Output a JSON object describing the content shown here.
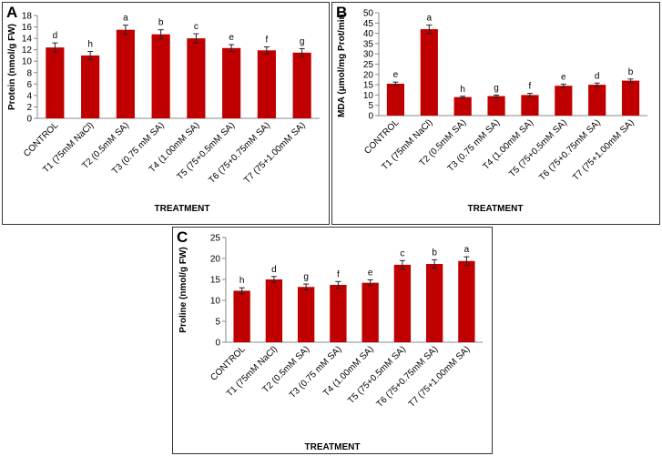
{
  "style": {
    "bar_color": "#c00000",
    "error_color": "#222222",
    "axis_color": "#888888"
  },
  "chart_data": [
    {
      "id": "A",
      "type": "bar",
      "panel_label": "A",
      "xlabel": "TREATMENT",
      "ylabel": "Protein (nmol/g FW)",
      "ylim": [
        0,
        18
      ],
      "yticks": [
        0,
        2,
        4,
        6,
        8,
        10,
        12,
        14,
        16,
        18
      ],
      "categories": [
        "CONTROL",
        "T1 (75mM NaCl)",
        "T2 (0.5mM SA)",
        "T3 (0.75 mM SA)",
        "T4 (1.00mM SA)",
        "T5 (75+0.5mM SA)",
        "T6 (75+0.75mM SA)",
        "T7 (75+1.00mM SA)"
      ],
      "values": [
        12.4,
        11.0,
        15.5,
        14.7,
        14.0,
        12.3,
        11.9,
        11.5
      ],
      "errors": [
        0.8,
        0.7,
        0.8,
        0.8,
        0.8,
        0.6,
        0.6,
        0.7
      ],
      "letters": [
        "d",
        "h",
        "a",
        "b",
        "c",
        "e",
        "f",
        "g"
      ]
    },
    {
      "id": "B",
      "type": "bar",
      "panel_label": "B",
      "xlabel": "TREATMENT",
      "ylabel": "MDA (μmol/mg Prot/min)",
      "ylim": [
        0,
        50
      ],
      "yticks": [
        0,
        5,
        10,
        15,
        20,
        25,
        30,
        35,
        40,
        45,
        50
      ],
      "categories": [
        "CONTROL",
        "T1 (75mM NaCl)",
        "T2 (0.5mM SA)",
        "T3 (0.75 mM SA)",
        "T4 (1.00mM SA)",
        "T5 (75+0.5mM SA)",
        "T6 (75+0.75mM SA)",
        "T7 (75+1.00mM SA)"
      ],
      "values": [
        15.5,
        42.0,
        9.0,
        9.5,
        10.0,
        14.5,
        15.0,
        17.0
      ],
      "errors": [
        0.8,
        2.0,
        0.4,
        0.5,
        0.8,
        0.8,
        0.8,
        0.8
      ],
      "letters": [
        "e",
        "a",
        "h",
        "g",
        "f",
        "e",
        "d",
        "b"
      ]
    },
    {
      "id": "C",
      "type": "bar",
      "panel_label": "C",
      "xlabel": "TREATMENT",
      "ylabel": "Proline (nmol/g FW)",
      "ylim": [
        0,
        25
      ],
      "yticks": [
        0,
        5,
        10,
        15,
        20,
        25
      ],
      "categories": [
        "CONTROL",
        "T1 (75mM NaCl)",
        "T2 (0.5mM SA)",
        "T3 (0.75 mM SA)",
        "T4 (1.00mM SA)",
        "T5 (75+0.5mM SA)",
        "T6 (75+0.75mM SA)",
        "T7 (75+1.00mM SA)"
      ],
      "values": [
        12.3,
        15.0,
        13.2,
        13.7,
        14.2,
        18.5,
        18.7,
        19.4
      ],
      "errors": [
        0.7,
        0.7,
        0.7,
        0.8,
        0.7,
        1.0,
        1.0,
        1.0
      ],
      "letters": [
        "h",
        "d",
        "g",
        "f",
        "e",
        "c",
        "b",
        "a"
      ]
    }
  ]
}
